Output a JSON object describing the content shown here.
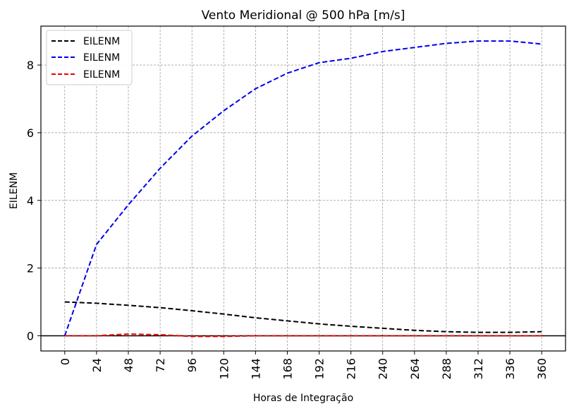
{
  "chart_data": {
    "type": "line",
    "title": "Vento Meridional @ 500 hPa [m/s]",
    "xlabel": "Horas de Integração",
    "ylabel": "EILENM",
    "xlim": [
      -18,
      378
    ],
    "ylim": [
      -0.45,
      9.15
    ],
    "grid": true,
    "legend_position": "top-left",
    "x_ticks": [
      0,
      24,
      48,
      72,
      96,
      120,
      144,
      168,
      192,
      216,
      240,
      264,
      288,
      312,
      336,
      360
    ],
    "x_tick_labels": [
      "0",
      "24",
      "48",
      "72",
      "96",
      "120",
      "144",
      "168",
      "192",
      "216",
      "240",
      "264",
      "288",
      "312",
      "336",
      "360"
    ],
    "y_ticks": [
      0,
      2,
      4,
      6,
      8
    ],
    "y_tick_labels": [
      "0",
      "2",
      "4",
      "6",
      "8"
    ],
    "hline": 0,
    "x": [
      0,
      24,
      48,
      72,
      96,
      120,
      144,
      168,
      192,
      216,
      240,
      264,
      288,
      312,
      336,
      360
    ],
    "series": [
      {
        "name": "EILENM",
        "color": "#000000",
        "values": [
          1.0,
          0.96,
          0.9,
          0.83,
          0.74,
          0.64,
          0.53,
          0.44,
          0.35,
          0.28,
          0.22,
          0.16,
          0.12,
          0.1,
          0.1,
          0.12
        ]
      },
      {
        "name": "EILENM",
        "color": "#0000ee",
        "values": [
          0.0,
          2.7,
          3.87,
          4.95,
          5.9,
          6.65,
          7.3,
          7.76,
          8.07,
          8.2,
          8.4,
          8.52,
          8.64,
          8.71,
          8.71,
          8.62
        ]
      },
      {
        "name": "EILENM",
        "color": "#ee0000",
        "values": [
          0.0,
          0.0,
          0.05,
          0.03,
          -0.02,
          -0.02,
          0.0,
          0.0,
          0.0,
          0.0,
          0.0,
          0.0,
          0.0,
          0.0,
          0.0,
          0.0
        ]
      }
    ]
  }
}
